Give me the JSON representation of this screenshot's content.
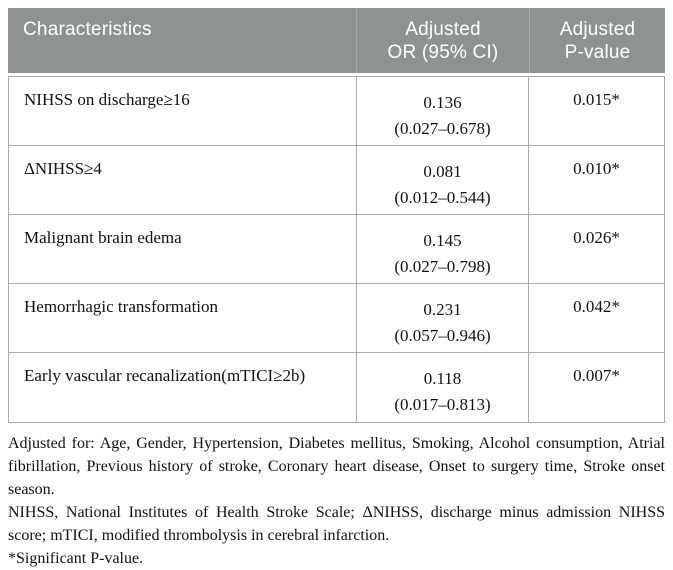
{
  "colors": {
    "header_background": "#8e9392",
    "header_text": "#ffffff",
    "border": "#a9a9a9",
    "body_text": "#111111",
    "page_background": "#ffffff"
  },
  "table": {
    "header": {
      "characteristics": "Characteristics",
      "or_line1": "Adjusted",
      "or_line2": "OR (95% CI)",
      "p_line1": "Adjusted",
      "p_line2": "P-value"
    },
    "rows": [
      {
        "characteristic": "NIHSS on discharge≥16",
        "or": "0.136",
        "ci": "(0.027–0.678)",
        "p": "0.015*"
      },
      {
        "characteristic": "ΔNIHSS≥4",
        "or": "0.081",
        "ci": "(0.012–0.544)",
        "p": "0.010*"
      },
      {
        "characteristic": "Malignant brain edema",
        "or": "0.145",
        "ci": "(0.027–0.798)",
        "p": "0.026*"
      },
      {
        "characteristic": "Hemorrhagic transformation",
        "or": "0.231",
        "ci": "(0.057–0.946)",
        "p": "0.042*"
      },
      {
        "characteristic": "Early vascular recanalization(mTICI≥2b)",
        "or": "0.118",
        "ci": "(0.017–0.813)",
        "p": "0.007*"
      }
    ]
  },
  "footnotes": {
    "adjusted_for": "Adjusted for: Age, Gender, Hypertension, Diabetes mellitus, Smoking, Alcohol consumption, Atrial fibrillation, Previous history of stroke, Coronary heart disease, Onset to surgery time, Stroke onset season.",
    "abbreviations": "NIHSS, National Institutes of Health Stroke Scale; ΔNIHSS, discharge minus admission NIHSS score; mTICI, modified thrombolysis in cerebral infarction.",
    "significance": "*Significant P-value."
  }
}
